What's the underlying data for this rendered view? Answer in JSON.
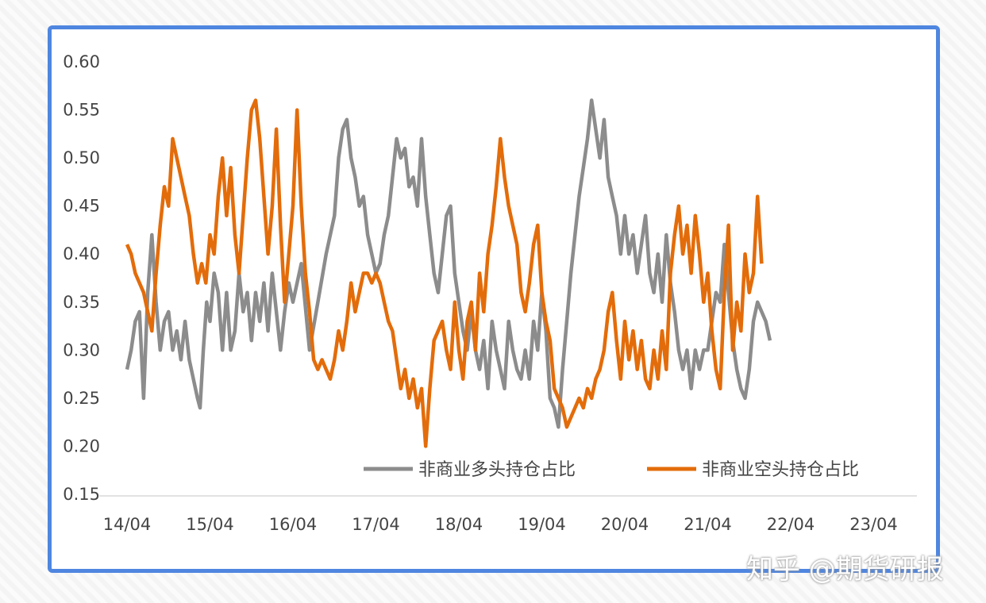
{
  "watermark": "知乎 @期货研报",
  "chart_data": {
    "type": "line",
    "title": "",
    "xlabel": "",
    "ylabel": "",
    "ylim": [
      0.15,
      0.6
    ],
    "yticks": [
      "0.60",
      "0.55",
      "0.50",
      "0.45",
      "0.40",
      "0.35",
      "0.30",
      "0.25",
      "0.20",
      "0.15"
    ],
    "xticks": [
      "14/04",
      "15/04",
      "16/04",
      "17/04",
      "18/04",
      "19/04",
      "20/04",
      "21/04",
      "22/04",
      "23/04"
    ],
    "grid": false,
    "legend_position": "bottom-right",
    "series": [
      {
        "name": "非商业多头持仓占比",
        "color": "#8c8c8c",
        "points": [
          [
            0,
            0.28
          ],
          [
            0.05,
            0.3
          ],
          [
            0.1,
            0.33
          ],
          [
            0.15,
            0.34
          ],
          [
            0.2,
            0.25
          ],
          [
            0.25,
            0.36
          ],
          [
            0.3,
            0.42
          ],
          [
            0.35,
            0.35
          ],
          [
            0.4,
            0.3
          ],
          [
            0.45,
            0.33
          ],
          [
            0.5,
            0.34
          ],
          [
            0.55,
            0.3
          ],
          [
            0.6,
            0.32
          ],
          [
            0.65,
            0.29
          ],
          [
            0.7,
            0.33
          ],
          [
            0.75,
            0.29
          ],
          [
            0.8,
            0.27
          ],
          [
            0.85,
            0.25
          ],
          [
            0.88,
            0.24
          ],
          [
            0.92,
            0.3
          ],
          [
            0.96,
            0.35
          ],
          [
            1.0,
            0.33
          ],
          [
            1.05,
            0.38
          ],
          [
            1.1,
            0.36
          ],
          [
            1.15,
            0.3
          ],
          [
            1.2,
            0.36
          ],
          [
            1.25,
            0.3
          ],
          [
            1.3,
            0.32
          ],
          [
            1.35,
            0.38
          ],
          [
            1.4,
            0.34
          ],
          [
            1.45,
            0.36
          ],
          [
            1.5,
            0.31
          ],
          [
            1.55,
            0.36
          ],
          [
            1.6,
            0.33
          ],
          [
            1.65,
            0.37
          ],
          [
            1.7,
            0.32
          ],
          [
            1.75,
            0.38
          ],
          [
            1.8,
            0.34
          ],
          [
            1.85,
            0.3
          ],
          [
            1.9,
            0.34
          ],
          [
            1.95,
            0.37
          ],
          [
            2.0,
            0.35
          ],
          [
            2.1,
            0.39
          ],
          [
            2.2,
            0.3
          ],
          [
            2.3,
            0.35
          ],
          [
            2.4,
            0.4
          ],
          [
            2.5,
            0.44
          ],
          [
            2.55,
            0.5
          ],
          [
            2.6,
            0.53
          ],
          [
            2.65,
            0.54
          ],
          [
            2.7,
            0.5
          ],
          [
            2.75,
            0.48
          ],
          [
            2.8,
            0.45
          ],
          [
            2.85,
            0.46
          ],
          [
            2.9,
            0.42
          ],
          [
            2.95,
            0.4
          ],
          [
            3.0,
            0.38
          ],
          [
            3.05,
            0.39
          ],
          [
            3.1,
            0.42
          ],
          [
            3.15,
            0.44
          ],
          [
            3.2,
            0.48
          ],
          [
            3.25,
            0.52
          ],
          [
            3.3,
            0.5
          ],
          [
            3.35,
            0.51
          ],
          [
            3.4,
            0.47
          ],
          [
            3.45,
            0.48
          ],
          [
            3.5,
            0.45
          ],
          [
            3.55,
            0.52
          ],
          [
            3.6,
            0.46
          ],
          [
            3.65,
            0.42
          ],
          [
            3.7,
            0.38
          ],
          [
            3.75,
            0.36
          ],
          [
            3.8,
            0.4
          ],
          [
            3.85,
            0.44
          ],
          [
            3.9,
            0.45
          ],
          [
            3.95,
            0.38
          ],
          [
            4.0,
            0.35
          ],
          [
            4.05,
            0.32
          ],
          [
            4.1,
            0.3
          ],
          [
            4.15,
            0.34
          ],
          [
            4.2,
            0.3
          ],
          [
            4.25,
            0.28
          ],
          [
            4.3,
            0.31
          ],
          [
            4.35,
            0.26
          ],
          [
            4.4,
            0.33
          ],
          [
            4.45,
            0.3
          ],
          [
            4.5,
            0.28
          ],
          [
            4.55,
            0.26
          ],
          [
            4.6,
            0.33
          ],
          [
            4.65,
            0.3
          ],
          [
            4.7,
            0.28
          ],
          [
            4.75,
            0.27
          ],
          [
            4.8,
            0.3
          ],
          [
            4.85,
            0.27
          ],
          [
            4.9,
            0.33
          ],
          [
            4.95,
            0.3
          ],
          [
            5.0,
            0.36
          ],
          [
            5.05,
            0.32
          ],
          [
            5.1,
            0.25
          ],
          [
            5.15,
            0.24
          ],
          [
            5.2,
            0.22
          ],
          [
            5.25,
            0.28
          ],
          [
            5.3,
            0.33
          ],
          [
            5.35,
            0.38
          ],
          [
            5.4,
            0.42
          ],
          [
            5.45,
            0.46
          ],
          [
            5.5,
            0.49
          ],
          [
            5.55,
            0.52
          ],
          [
            5.6,
            0.56
          ],
          [
            5.65,
            0.53
          ],
          [
            5.7,
            0.5
          ],
          [
            5.75,
            0.54
          ],
          [
            5.8,
            0.48
          ],
          [
            5.85,
            0.46
          ],
          [
            5.9,
            0.44
          ],
          [
            5.95,
            0.4
          ],
          [
            6.0,
            0.44
          ],
          [
            6.05,
            0.4
          ],
          [
            6.1,
            0.42
          ],
          [
            6.15,
            0.38
          ],
          [
            6.2,
            0.41
          ],
          [
            6.25,
            0.44
          ],
          [
            6.3,
            0.38
          ],
          [
            6.35,
            0.36
          ],
          [
            6.4,
            0.4
          ],
          [
            6.45,
            0.35
          ],
          [
            6.5,
            0.42
          ],
          [
            6.55,
            0.37
          ],
          [
            6.6,
            0.34
          ],
          [
            6.65,
            0.3
          ],
          [
            6.7,
            0.28
          ],
          [
            6.75,
            0.3
          ],
          [
            6.8,
            0.26
          ],
          [
            6.85,
            0.3
          ],
          [
            6.9,
            0.28
          ],
          [
            6.95,
            0.3
          ],
          [
            7.0,
            0.3
          ],
          [
            7.05,
            0.33
          ],
          [
            7.1,
            0.36
          ],
          [
            7.15,
            0.35
          ],
          [
            7.2,
            0.41
          ],
          [
            7.25,
            0.36
          ],
          [
            7.3,
            0.31
          ],
          [
            7.35,
            0.28
          ],
          [
            7.4,
            0.26
          ],
          [
            7.45,
            0.25
          ],
          [
            7.5,
            0.28
          ],
          [
            7.55,
            0.33
          ],
          [
            7.6,
            0.35
          ],
          [
            7.65,
            0.34
          ],
          [
            7.7,
            0.33
          ],
          [
            7.75,
            0.31
          ]
        ]
      },
      {
        "name": "非商业空头持仓占比",
        "color": "#e36c0a",
        "points": [
          [
            0,
            0.41
          ],
          [
            0.05,
            0.4
          ],
          [
            0.1,
            0.38
          ],
          [
            0.15,
            0.37
          ],
          [
            0.2,
            0.36
          ],
          [
            0.25,
            0.34
          ],
          [
            0.3,
            0.32
          ],
          [
            0.35,
            0.38
          ],
          [
            0.4,
            0.43
          ],
          [
            0.45,
            0.47
          ],
          [
            0.5,
            0.45
          ],
          [
            0.55,
            0.52
          ],
          [
            0.6,
            0.5
          ],
          [
            0.65,
            0.48
          ],
          [
            0.7,
            0.46
          ],
          [
            0.75,
            0.44
          ],
          [
            0.8,
            0.4
          ],
          [
            0.85,
            0.37
          ],
          [
            0.9,
            0.39
          ],
          [
            0.95,
            0.37
          ],
          [
            1.0,
            0.42
          ],
          [
            1.05,
            0.4
          ],
          [
            1.1,
            0.46
          ],
          [
            1.15,
            0.5
          ],
          [
            1.2,
            0.44
          ],
          [
            1.25,
            0.49
          ],
          [
            1.3,
            0.42
          ],
          [
            1.35,
            0.38
          ],
          [
            1.4,
            0.44
          ],
          [
            1.45,
            0.5
          ],
          [
            1.5,
            0.55
          ],
          [
            1.55,
            0.56
          ],
          [
            1.6,
            0.52
          ],
          [
            1.65,
            0.46
          ],
          [
            1.7,
            0.4
          ],
          [
            1.75,
            0.45
          ],
          [
            1.8,
            0.53
          ],
          [
            1.85,
            0.43
          ],
          [
            1.9,
            0.35
          ],
          [
            1.95,
            0.4
          ],
          [
            2.0,
            0.45
          ],
          [
            2.05,
            0.55
          ],
          [
            2.1,
            0.45
          ],
          [
            2.15,
            0.38
          ],
          [
            2.2,
            0.34
          ],
          [
            2.25,
            0.29
          ],
          [
            2.3,
            0.28
          ],
          [
            2.35,
            0.29
          ],
          [
            2.4,
            0.28
          ],
          [
            2.45,
            0.27
          ],
          [
            2.5,
            0.29
          ],
          [
            2.55,
            0.32
          ],
          [
            2.6,
            0.3
          ],
          [
            2.65,
            0.33
          ],
          [
            2.7,
            0.37
          ],
          [
            2.75,
            0.34
          ],
          [
            2.8,
            0.36
          ],
          [
            2.85,
            0.38
          ],
          [
            2.9,
            0.38
          ],
          [
            2.95,
            0.37
          ],
          [
            3.0,
            0.38
          ],
          [
            3.05,
            0.37
          ],
          [
            3.1,
            0.35
          ],
          [
            3.15,
            0.33
          ],
          [
            3.2,
            0.32
          ],
          [
            3.25,
            0.29
          ],
          [
            3.3,
            0.26
          ],
          [
            3.35,
            0.28
          ],
          [
            3.4,
            0.25
          ],
          [
            3.45,
            0.27
          ],
          [
            3.5,
            0.24
          ],
          [
            3.55,
            0.26
          ],
          [
            3.6,
            0.2
          ],
          [
            3.65,
            0.26
          ],
          [
            3.7,
            0.31
          ],
          [
            3.75,
            0.32
          ],
          [
            3.8,
            0.33
          ],
          [
            3.85,
            0.3
          ],
          [
            3.9,
            0.28
          ],
          [
            3.95,
            0.35
          ],
          [
            4.0,
            0.3
          ],
          [
            4.05,
            0.27
          ],
          [
            4.1,
            0.33
          ],
          [
            4.15,
            0.35
          ],
          [
            4.2,
            0.3
          ],
          [
            4.25,
            0.38
          ],
          [
            4.3,
            0.34
          ],
          [
            4.35,
            0.4
          ],
          [
            4.4,
            0.43
          ],
          [
            4.45,
            0.47
          ],
          [
            4.5,
            0.52
          ],
          [
            4.55,
            0.48
          ],
          [
            4.6,
            0.45
          ],
          [
            4.65,
            0.43
          ],
          [
            4.7,
            0.41
          ],
          [
            4.75,
            0.36
          ],
          [
            4.8,
            0.34
          ],
          [
            4.85,
            0.37
          ],
          [
            4.9,
            0.41
          ],
          [
            4.95,
            0.43
          ],
          [
            5.0,
            0.36
          ],
          [
            5.05,
            0.33
          ],
          [
            5.1,
            0.31
          ],
          [
            5.15,
            0.26
          ],
          [
            5.2,
            0.25
          ],
          [
            5.25,
            0.24
          ],
          [
            5.3,
            0.22
          ],
          [
            5.35,
            0.23
          ],
          [
            5.4,
            0.24
          ],
          [
            5.45,
            0.25
          ],
          [
            5.5,
            0.24
          ],
          [
            5.55,
            0.26
          ],
          [
            5.6,
            0.25
          ],
          [
            5.65,
            0.27
          ],
          [
            5.7,
            0.28
          ],
          [
            5.75,
            0.3
          ],
          [
            5.8,
            0.34
          ],
          [
            5.85,
            0.36
          ],
          [
            5.9,
            0.31
          ],
          [
            5.95,
            0.27
          ],
          [
            6.0,
            0.33
          ],
          [
            6.05,
            0.29
          ],
          [
            6.1,
            0.32
          ],
          [
            6.15,
            0.28
          ],
          [
            6.2,
            0.31
          ],
          [
            6.25,
            0.27
          ],
          [
            6.3,
            0.26
          ],
          [
            6.35,
            0.3
          ],
          [
            6.4,
            0.27
          ],
          [
            6.45,
            0.32
          ],
          [
            6.5,
            0.28
          ],
          [
            6.55,
            0.38
          ],
          [
            6.6,
            0.42
          ],
          [
            6.65,
            0.45
          ],
          [
            6.7,
            0.4
          ],
          [
            6.75,
            0.43
          ],
          [
            6.8,
            0.38
          ],
          [
            6.85,
            0.44
          ],
          [
            6.9,
            0.4
          ],
          [
            6.95,
            0.35
          ],
          [
            7.0,
            0.38
          ],
          [
            7.05,
            0.32
          ],
          [
            7.1,
            0.28
          ],
          [
            7.15,
            0.26
          ],
          [
            7.2,
            0.36
          ],
          [
            7.25,
            0.43
          ],
          [
            7.3,
            0.3
          ],
          [
            7.35,
            0.35
          ],
          [
            7.4,
            0.32
          ],
          [
            7.45,
            0.4
          ],
          [
            7.5,
            0.36
          ],
          [
            7.55,
            0.38
          ],
          [
            7.6,
            0.46
          ],
          [
            7.65,
            0.39
          ]
        ]
      }
    ]
  }
}
